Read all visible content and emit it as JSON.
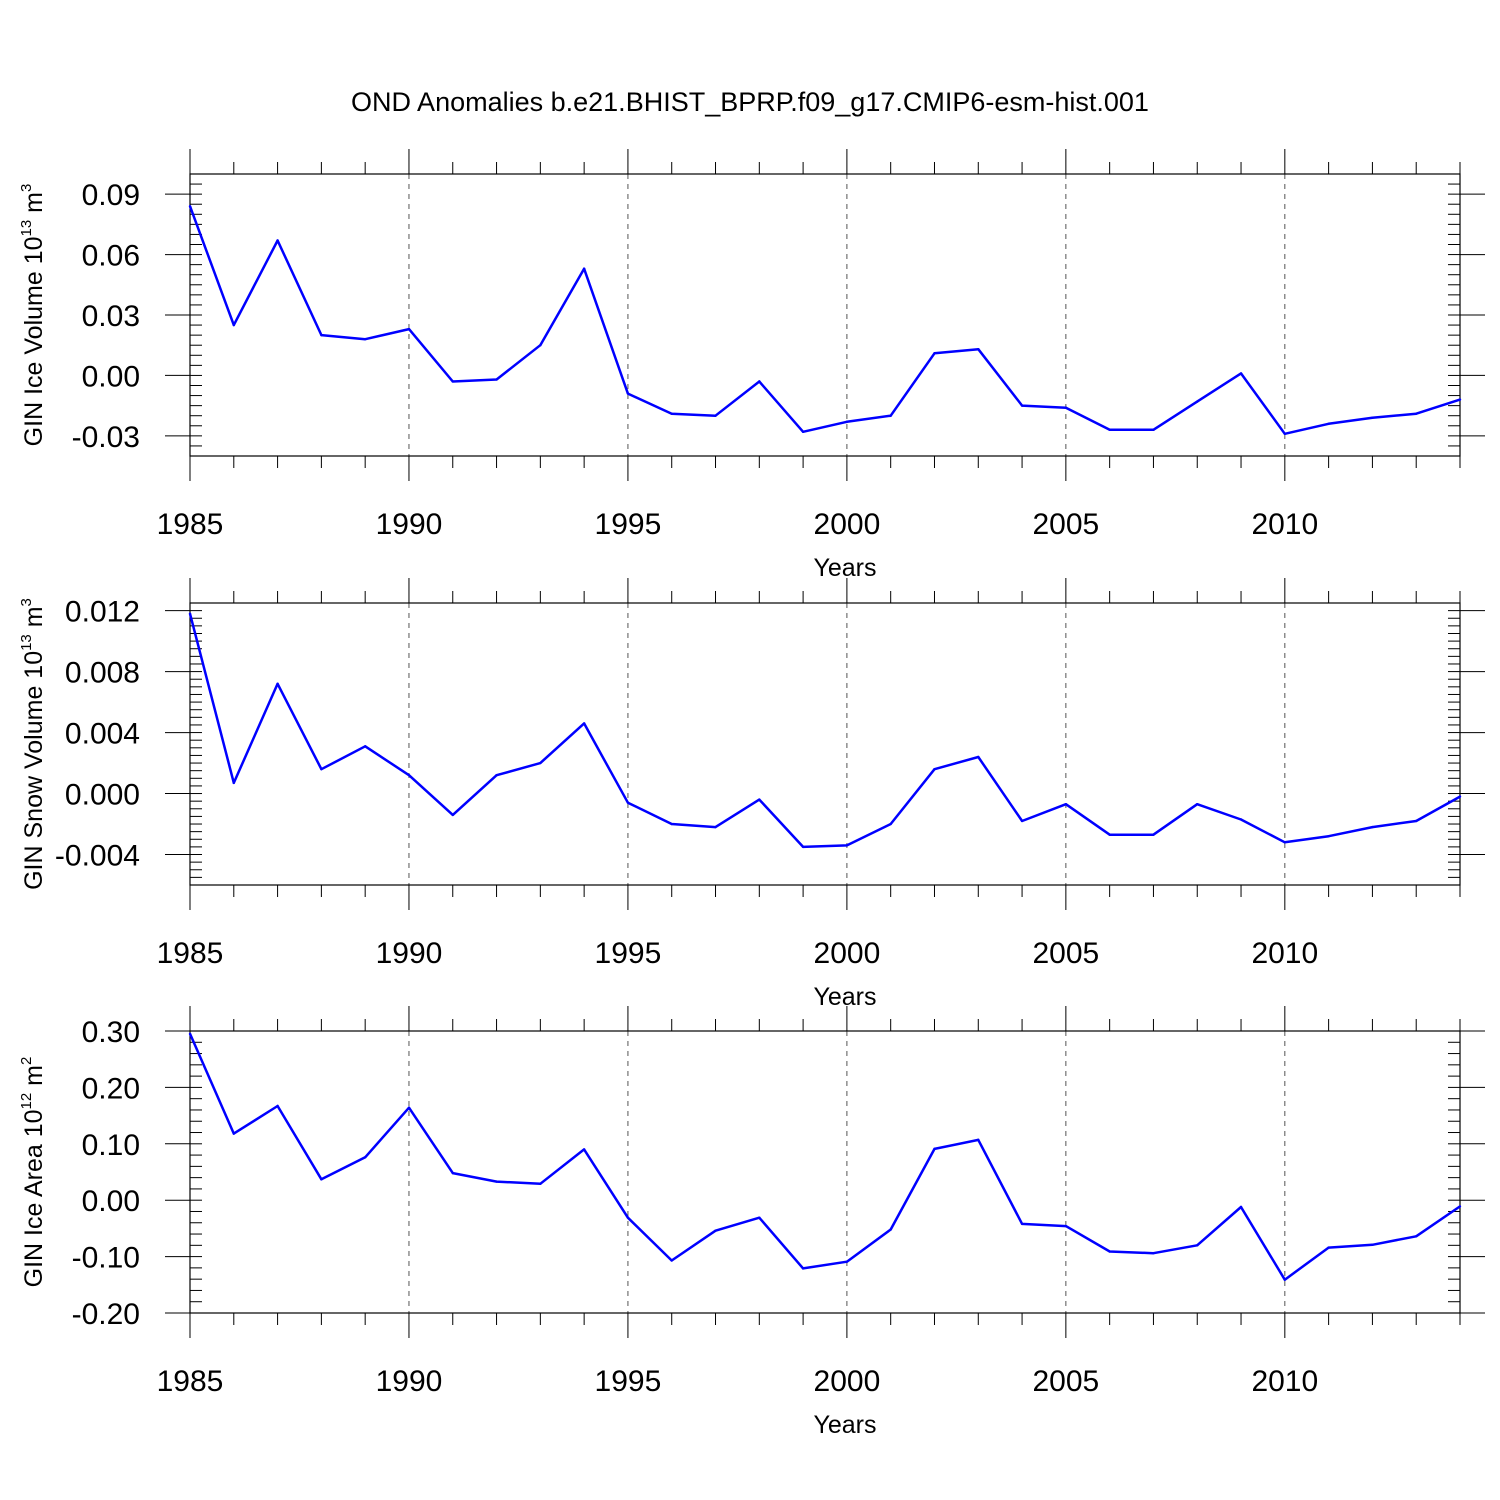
{
  "figure": {
    "title": "OND Anomalies b.e21.BHIST_BPRP.f09_g17.CMIP6-esm-hist.001"
  },
  "chart_data": [
    {
      "type": "line",
      "xlabel": "Years",
      "ylabel": {
        "prefix": "GIN Ice Volume 10",
        "exponent": "13",
        "unit": " m",
        "unit_exponent": "3"
      },
      "xlim": [
        1985,
        2014
      ],
      "ylim": [
        -0.04,
        0.1
      ],
      "xticks": [
        1985,
        1990,
        1995,
        2000,
        2005,
        2010
      ],
      "yticks": [
        -0.03,
        0.0,
        0.03,
        0.06,
        0.09
      ],
      "ytick_labels": [
        "-0.03",
        "0.00",
        "0.03",
        "0.06",
        "0.09"
      ],
      "grid": "dashed vertical at major x ticks",
      "line_color": "#0000ff",
      "x": [
        1985,
        1986,
        1987,
        1988,
        1989,
        1990,
        1991,
        1992,
        1993,
        1994,
        1995,
        1996,
        1997,
        1998,
        1999,
        2000,
        2001,
        2002,
        2003,
        2004,
        2005,
        2006,
        2007,
        2008,
        2009,
        2010,
        2011,
        2012,
        2013,
        2014
      ],
      "values": [
        0.084,
        0.025,
        0.067,
        0.02,
        0.018,
        0.023,
        -0.003,
        -0.002,
        0.015,
        0.053,
        -0.009,
        -0.019,
        -0.02,
        -0.003,
        -0.028,
        -0.023,
        -0.02,
        0.011,
        0.013,
        -0.015,
        -0.016,
        -0.027,
        -0.027,
        -0.013,
        0.001,
        -0.029,
        -0.024,
        -0.021,
        -0.019,
        -0.012
      ]
    },
    {
      "type": "line",
      "xlabel": "Years",
      "ylabel": {
        "prefix": "GIN Snow Volume 10",
        "exponent": "13",
        "unit": " m",
        "unit_exponent": "3"
      },
      "xlim": [
        1985,
        2014
      ],
      "ylim": [
        -0.006,
        0.0125
      ],
      "xticks": [
        1985,
        1990,
        1995,
        2000,
        2005,
        2010
      ],
      "yticks": [
        -0.004,
        0.0,
        0.004,
        0.008,
        0.012
      ],
      "ytick_labels": [
        "-0.004",
        "0.000",
        "0.004",
        "0.008",
        "0.012"
      ],
      "grid": "dashed vertical at major x ticks",
      "line_color": "#0000ff",
      "x": [
        1985,
        1986,
        1987,
        1988,
        1989,
        1990,
        1991,
        1992,
        1993,
        1994,
        1995,
        1996,
        1997,
        1998,
        1999,
        2000,
        2001,
        2002,
        2003,
        2004,
        2005,
        2006,
        2007,
        2008,
        2009,
        2010,
        2011,
        2012,
        2013,
        2014
      ],
      "values": [
        0.0118,
        0.0007,
        0.0072,
        0.0016,
        0.0031,
        0.0012,
        -0.0014,
        0.0012,
        0.002,
        0.0046,
        -0.0006,
        -0.002,
        -0.0022,
        -0.0004,
        -0.0035,
        -0.0034,
        -0.002,
        0.0016,
        0.0024,
        -0.0018,
        -0.0007,
        -0.0027,
        -0.0027,
        -0.0007,
        -0.0017,
        -0.0032,
        -0.0028,
        -0.0022,
        -0.0018,
        -0.0002
      ]
    },
    {
      "type": "line",
      "xlabel": "Years",
      "ylabel": {
        "prefix": "GIN Ice Area 10",
        "exponent": "12",
        "unit": " m",
        "unit_exponent": "2"
      },
      "xlim": [
        1985,
        2014
      ],
      "ylim": [
        -0.2,
        0.3
      ],
      "xticks": [
        1985,
        1990,
        1995,
        2000,
        2005,
        2010
      ],
      "yticks": [
        -0.2,
        -0.1,
        0.0,
        0.1,
        0.2,
        0.3
      ],
      "ytick_labels": [
        "-0.20",
        "-0.10",
        "0.00",
        "0.10",
        "0.20",
        "0.30"
      ],
      "grid": "dashed vertical at major x ticks",
      "line_color": "#0000ff",
      "x": [
        1985,
        1986,
        1987,
        1988,
        1989,
        1990,
        1991,
        1992,
        1993,
        1994,
        1995,
        1996,
        1997,
        1998,
        1999,
        2000,
        2001,
        2002,
        2003,
        2004,
        2005,
        2006,
        2007,
        2008,
        2009,
        2010,
        2011,
        2012,
        2013,
        2014
      ],
      "values": [
        0.295,
        0.118,
        0.167,
        0.037,
        0.076,
        0.164,
        0.048,
        0.033,
        0.029,
        0.09,
        -0.031,
        -0.107,
        -0.054,
        -0.031,
        -0.121,
        -0.109,
        -0.052,
        0.091,
        0.107,
        -0.042,
        -0.046,
        -0.091,
        -0.094,
        -0.08,
        -0.012,
        -0.141,
        -0.084,
        -0.079,
        -0.064,
        -0.011
      ]
    }
  ]
}
